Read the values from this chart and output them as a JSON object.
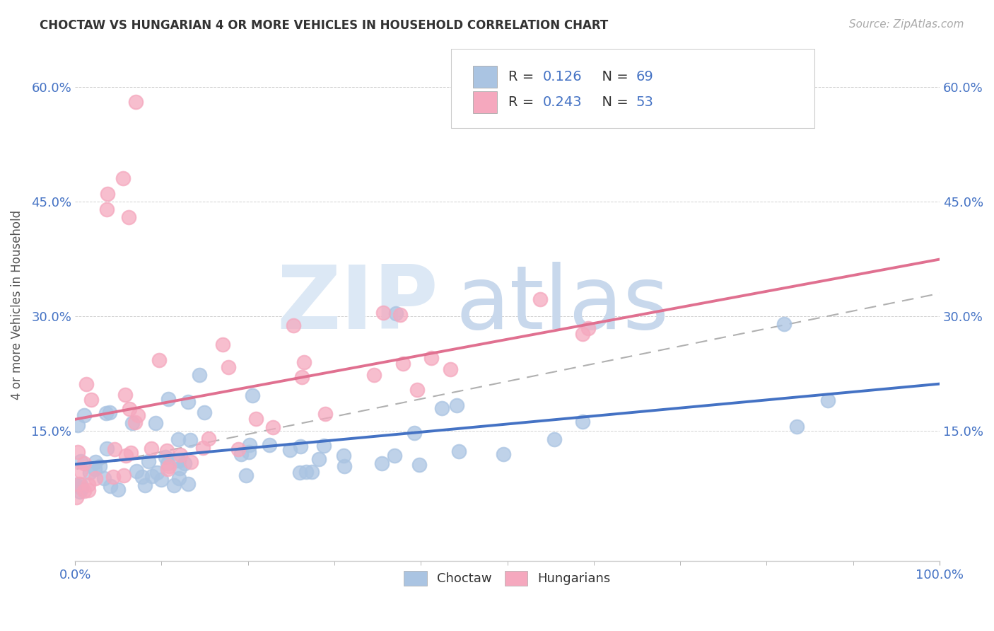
{
  "title": "CHOCTAW VS HUNGARIAN 4 OR MORE VEHICLES IN HOUSEHOLD CORRELATION CHART",
  "source": "Source: ZipAtlas.com",
  "ylabel": "4 or more Vehicles in Household",
  "xlim": [
    0,
    1.0
  ],
  "ylim": [
    -0.02,
    0.65
  ],
  "ytick_vals": [
    0.15,
    0.3,
    0.45,
    0.6
  ],
  "ytick_labels": [
    "15.0%",
    "30.0%",
    "45.0%",
    "60.0%"
  ],
  "xtick_vals": [
    0.0,
    1.0
  ],
  "xtick_labels": [
    "0.0%",
    "100.0%"
  ],
  "choctaw_R": 0.126,
  "choctaw_N": 69,
  "hungarian_R": 0.243,
  "hungarian_N": 53,
  "choctaw_color": "#aac4e2",
  "hungarian_color": "#f5a8be",
  "choctaw_line_color": "#4472c4",
  "hungarian_line_color": "#e07090",
  "legend_labels": [
    "Choctaw",
    "Hungarians"
  ],
  "watermark_zip_color": "#dce8f5",
  "watermark_atlas_color": "#c8d8ec",
  "tick_color": "#4472c4",
  "title_fontsize": 12,
  "source_fontsize": 11,
  "axis_fontsize": 13
}
